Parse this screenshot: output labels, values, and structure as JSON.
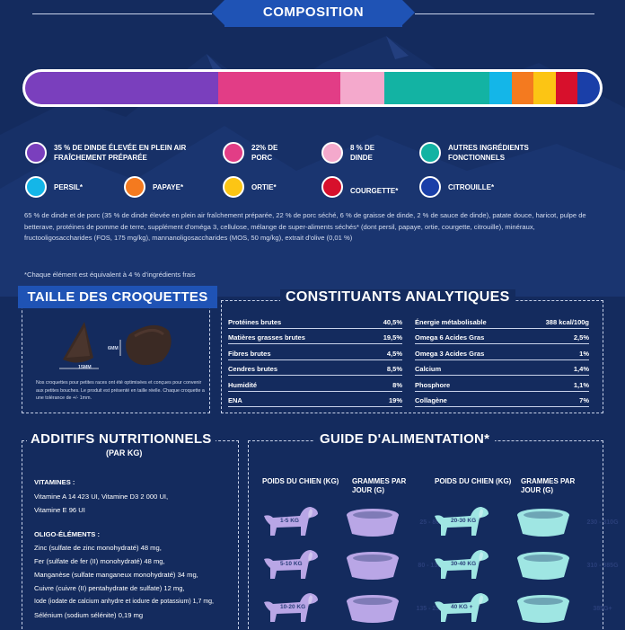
{
  "composition": {
    "title": "COMPOSITION",
    "bar_segments": [
      {
        "color": "#7a3fbd",
        "share": 35
      },
      {
        "color": "#e23d86",
        "share": 22
      },
      {
        "color": "#f4a9cc",
        "share": 8
      },
      {
        "color": "#13b3a3",
        "share": 19
      },
      {
        "color": "#14b6e8",
        "share": 4
      },
      {
        "color": "#f47a1f",
        "share": 4
      },
      {
        "color": "#fcc514",
        "share": 4
      },
      {
        "color": "#d7102c",
        "share": 4
      },
      {
        "color": "#1a3fa8",
        "share": 4
      }
    ],
    "legend": [
      {
        "label": "35 % DE DINDE ÉLEVÉE EN PLEIN AIR FRAÎCHEMENT PRÉPARÉE",
        "color": "#7a3fbd"
      },
      {
        "label": "22% DE PORC",
        "color": "#e23d86"
      },
      {
        "label": "8 % DE DINDE",
        "color": "#f4a9cc"
      },
      {
        "label": "AUTRES INGRÉDIENTS FONCTIONNELS",
        "color": "#13b3a3"
      },
      {
        "label": "PERSIL*",
        "color": "#14b6e8"
      },
      {
        "label": "PAPAYE*",
        "color": "#f47a1f"
      },
      {
        "label": "ORTIE*",
        "color": "#fcc514"
      },
      {
        "label": "COURGETTE*",
        "color": "#d7102c"
      },
      {
        "label": "CITROUILLE*",
        "color": "#1a3fa8"
      }
    ],
    "ingredients": "65 % de dinde et de porc (35 % de dinde élevée en plein air fraîchement préparée, 22 % de porc séché, 6 % de graisse de dinde, 2 % de sauce de dinde), patate douce, haricot, pulpe de betterave, protéines de pomme de terre, supplément d'oméga 3, cellulose, mélange de super-aliments séchés* (dont persil, papaye, ortie, courgette, citrouille), minéraux, fructooligosaccharides (FOS, 175 mg/kg), mannanoligosaccharides (MOS, 50 mg/kg), extrait d'olive (0,01 %)",
    "footnote": "*Chaque élément est équivalent à 4 % d'ingrédients frais"
  },
  "kibble": {
    "title": "TAILLE DES CROQUETTES",
    "dim_vertical": "6MM",
    "dim_horizontal": "15MM",
    "note": "Nos croquettes pour petites races ont été optimisées et conçues pour convenir aux petites bouches. Le produit est présenté en taille réelle. Chaque croquette a une tolérance de +/- 1mm."
  },
  "analytical": {
    "title": "CONSTITUANTS ANALYTIQUES",
    "left": [
      {
        "name": "Protéines brutes",
        "value": "40,5%"
      },
      {
        "name": "Matières grasses brutes",
        "value": "19,5%"
      },
      {
        "name": "Fibres brutes",
        "value": "4,5%"
      },
      {
        "name": "Cendres brutes",
        "value": "8,5%"
      },
      {
        "name": "Humidité",
        "value": "8%"
      },
      {
        "name": "ENA",
        "value": "19%"
      }
    ],
    "right": [
      {
        "name": "Énergie métabolisable",
        "value": "388 kcal/100g"
      },
      {
        "name": "Omega 6 Acides Gras",
        "value": "2,5%"
      },
      {
        "name": "Omega 3 Acides Gras",
        "value": "1%"
      },
      {
        "name": "Calcium",
        "value": "1,4%"
      },
      {
        "name": "Phosphore",
        "value": "1,1%"
      },
      {
        "name": "Collagène",
        "value": "7%"
      }
    ]
  },
  "additives": {
    "title": "ADDITIFS NUTRITIONNELS",
    "subtitle": "(PAR KG)",
    "vitamins_heading": "VITAMINES :",
    "vitamins_line1": "Vitamine A 14 423 UI, Vitamine D3 2 000 UI,",
    "vitamins_line2": "Vitamine E 96 UI",
    "trace_heading": "OLIGO-ÉLÉMENTS :",
    "trace": [
      "Zinc (sulfate de zinc monohydraté) 48 mg,",
      "Fer (sulfate de fer (II) monohydraté) 48 mg,",
      "Manganèse (sulfate manganeux monohydraté) 34 mg,",
      "Cuivre (cuivre (II) pentahydrate de sulfate) 12 mg,",
      "Iode (iodate de calcium anhydre et iodure de potassium) 1,7 mg,",
      "Sélénium (sodium sélénite) 0,19 mg"
    ]
  },
  "feeding": {
    "title": "GUIDE D'ALIMENTATION*",
    "head_weight": "POIDS DU CHIEN (KG)",
    "head_grams": "GRAMMES PAR JOUR (G)",
    "rows_left": [
      {
        "weight": "1-5 KG",
        "grams": "25 - 80G"
      },
      {
        "weight": "5-10 KG",
        "grams": "80 - 135G"
      },
      {
        "weight": "10-20 KG",
        "grams": "135 - 230G"
      }
    ],
    "rows_right": [
      {
        "weight": "20-30 KG",
        "grams": "230 - 310G"
      },
      {
        "weight": "30-40 KG",
        "grams": "310 - 385G"
      },
      {
        "weight": "40 KG +",
        "grams": "385G+"
      }
    ],
    "colors": {
      "dog_left": "#b9a6e6",
      "dog_right": "#9fe6e3",
      "bowl_left": "#b9a6e6",
      "bowl_right": "#9fe6e3"
    }
  },
  "colors": {
    "background": "#142b5e",
    "accent": "#1f53b5"
  }
}
